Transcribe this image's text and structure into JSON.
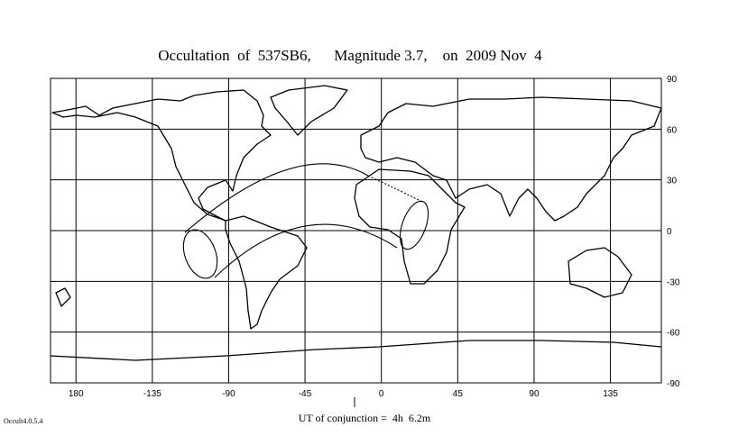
{
  "title": "Occultation  of  537SB6,      Magnitude 3.7,    on  2009 Nov  4",
  "map": {
    "lon_range": [
      -195,
      165
    ],
    "lat_range": [
      -90,
      90
    ],
    "lon_ticks": [
      {
        "value": -180,
        "label": "180"
      },
      -135,
      -90,
      -45,
      0,
      45,
      90,
      135
    ],
    "lat_ticks": [
      90,
      60,
      30,
      0,
      -30,
      -60,
      -90
    ]
  },
  "footer": "UT of conjunction =  4h  6.2m",
  "version": "Occult4.0.5.4"
}
